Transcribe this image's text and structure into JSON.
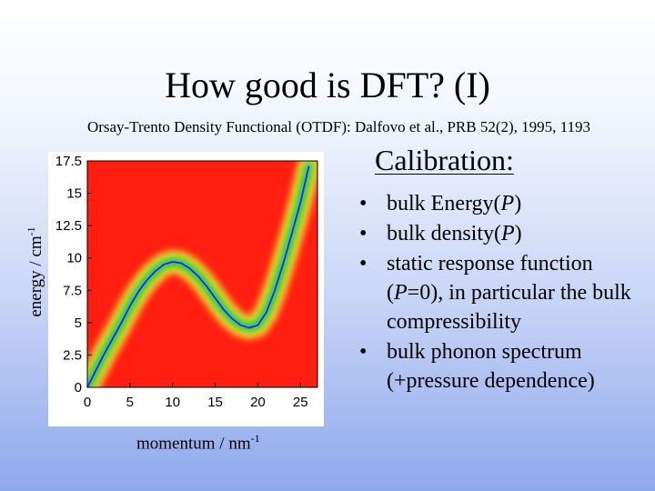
{
  "slide": {
    "title": "How good is DFT? (I)",
    "subtitle": "Orsay-Trento Density Functional (OTDF): Dalfovo et al., PRB 52(2), 1995, 1193",
    "section_heading": "Calibration:",
    "bullets": [
      {
        "pre": "bulk Energy(",
        "em": "P",
        "post": ")"
      },
      {
        "pre": "bulk density(",
        "em": "P",
        "post": ")"
      },
      {
        "pre": "static response function (",
        "em": "P",
        "post": "=0), in particular the bulk compressibility"
      },
      {
        "pre": "bulk phonon spectrum (+pressure dependence)",
        "em": "",
        "post": ""
      }
    ],
    "bullet_symbol": "•"
  },
  "chart_data": {
    "type": "heatmap",
    "title": "",
    "xlabel": "momentum / nm",
    "xlabel_sup": "-1",
    "ylabel": "energy / cm",
    "ylabel_sup": "-1",
    "xlim": [
      0,
      27
    ],
    "ylim": [
      0,
      17.5
    ],
    "xticks": [
      0,
      5,
      10,
      15,
      20,
      25
    ],
    "yticks": [
      0,
      2.5,
      5,
      7.5,
      10,
      12.5,
      15,
      17.5
    ],
    "xtick_labels": [
      "0",
      "5",
      "10",
      "15",
      "20",
      "25"
    ],
    "ytick_labels": [
      "0",
      "2.5",
      "5",
      "7.5",
      "10",
      "12.5",
      "15",
      "17.5"
    ],
    "background_color": "#ff1e10",
    "peak_color": "#1fc02a",
    "line_color": "#2f32b8",
    "dispersion_curve": {
      "x": [
        0,
        2,
        4,
        5,
        6,
        7,
        8,
        9,
        10,
        11,
        12,
        13,
        14,
        15,
        16,
        17,
        18,
        19,
        20,
        21,
        22,
        23,
        24,
        25,
        26
      ],
      "y": [
        0,
        2.6,
        5.0,
        6.3,
        7.4,
        8.3,
        9.0,
        9.5,
        9.7,
        9.6,
        9.2,
        8.6,
        7.8,
        6.9,
        6.0,
        5.3,
        4.8,
        4.6,
        4.8,
        5.8,
        7.5,
        9.6,
        11.9,
        14.3,
        17.1
      ]
    },
    "grid": false
  }
}
